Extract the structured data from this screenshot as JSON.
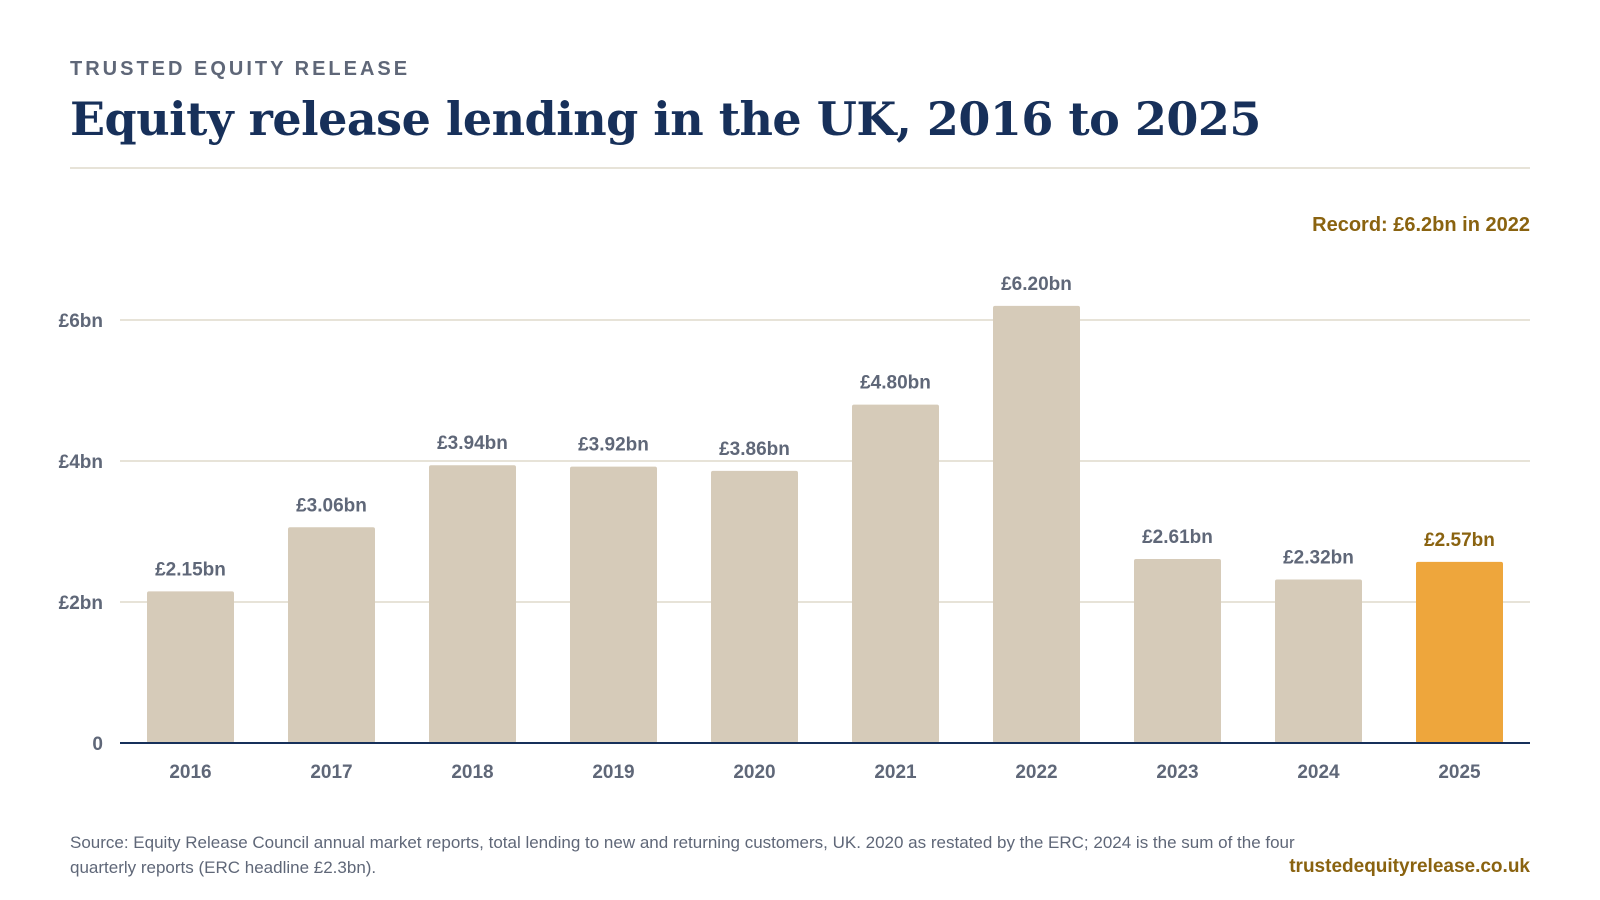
{
  "header": {
    "eyebrow": "TRUSTED EQUITY RELEASE",
    "title": "Equity release lending in the UK, 2016 to 2025"
  },
  "callout": "Record: £6.2bn in 2022",
  "footer": {
    "source": "Source: Equity Release Council annual market reports, total lending to new and returning customers, UK. 2020 as restated by the ERC; 2024 is the sum of the four quarterly reports (ERC headline £2.3bn).",
    "site": "trustedequityrelease.co.uk"
  },
  "colors": {
    "bar": "#d6cbb9",
    "highlight_bar": "#eea63c",
    "label": "#5f6778",
    "highlight_label": "#8a6310",
    "grid": "#e7e3d8",
    "axis": "#17305a"
  },
  "chart_data": {
    "type": "bar",
    "categories": [
      "2016",
      "2017",
      "2018",
      "2019",
      "2020",
      "2021",
      "2022",
      "2023",
      "2024",
      "2025"
    ],
    "values": [
      2.15,
      3.06,
      3.94,
      3.92,
      3.86,
      4.8,
      6.2,
      2.61,
      2.32,
      2.57
    ],
    "data_labels": [
      "£2.15bn",
      "£3.06bn",
      "£3.94bn",
      "£3.92bn",
      "£3.86bn",
      "£4.80bn",
      "£6.20bn",
      "£2.61bn",
      "£2.32bn",
      "£2.57bn"
    ],
    "highlight_category": "2025",
    "yticks": [
      0,
      2,
      4,
      6
    ],
    "ytick_labels": [
      "0",
      "£2bn",
      "£4bn",
      "£6bn"
    ],
    "ylim": [
      0,
      6.2
    ],
    "grid": true,
    "legend": "none"
  }
}
